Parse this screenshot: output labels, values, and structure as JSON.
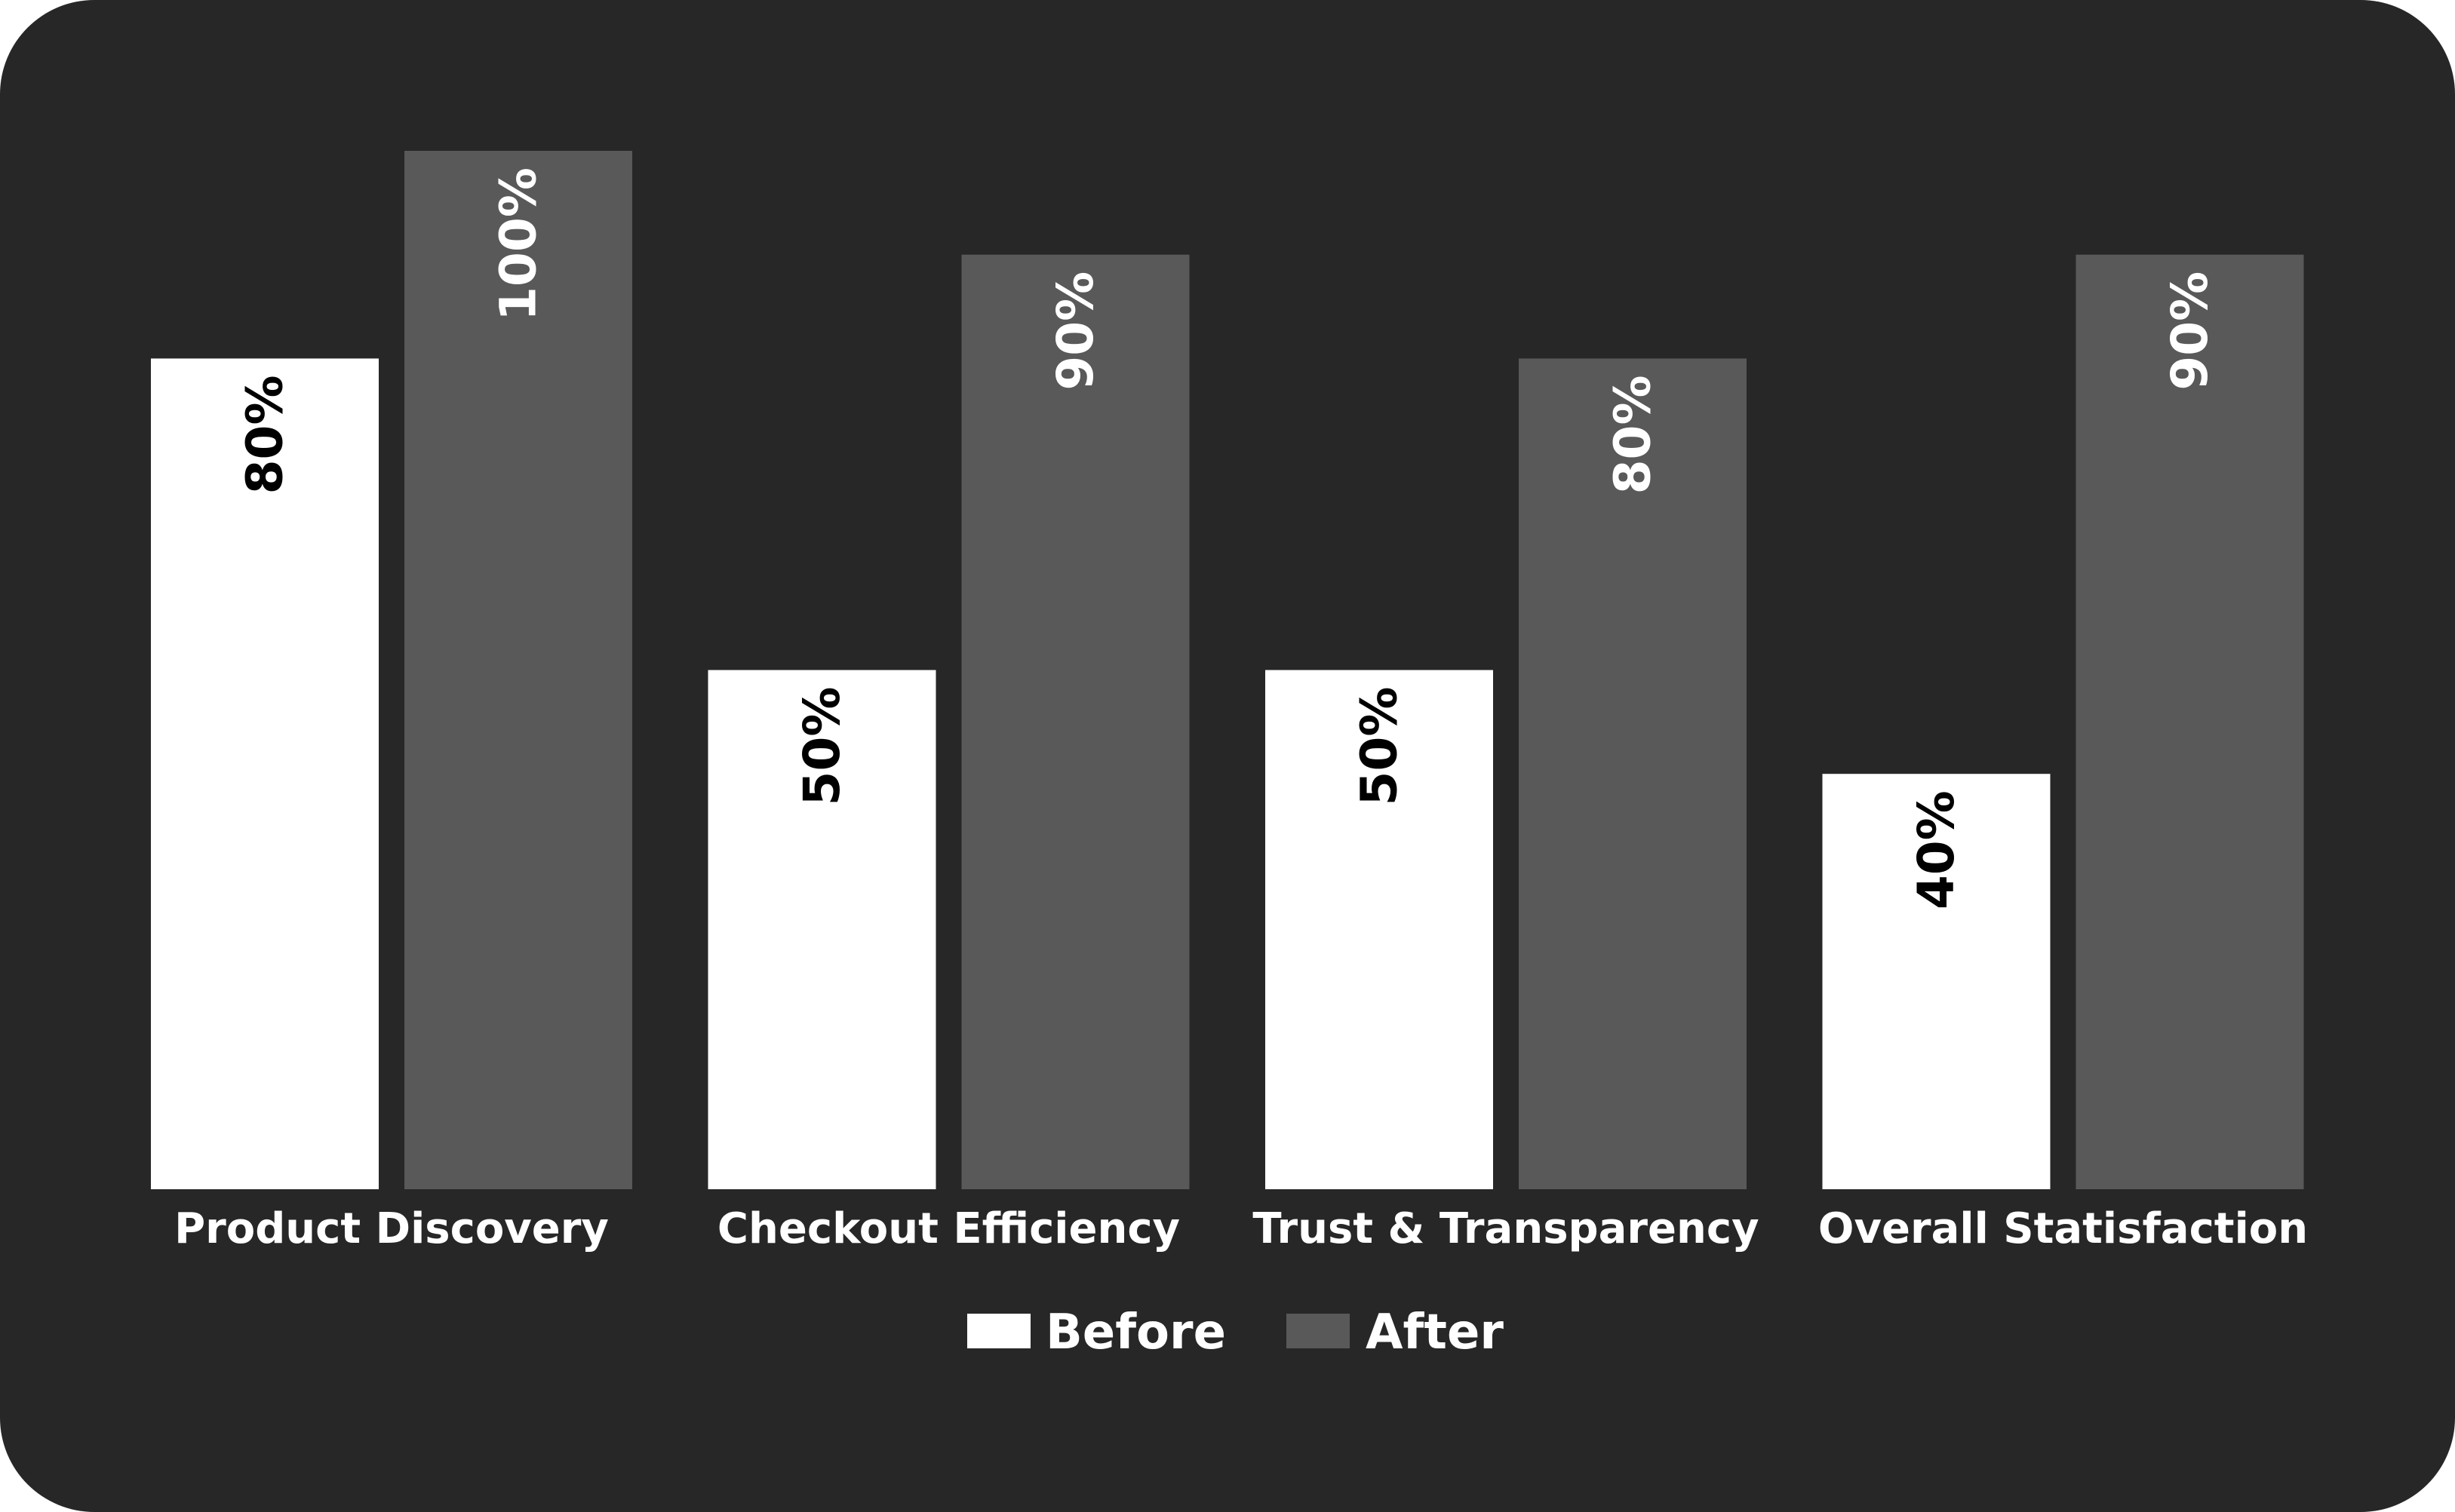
{
  "chart_data": {
    "type": "bar",
    "categories": [
      "Product Discovery",
      "Checkout Efficiency",
      "Trust & Transparency",
      "Overall Statisfaction"
    ],
    "series": [
      {
        "name": "Before",
        "values": [
          80,
          50,
          50,
          40
        ],
        "value_labels": [
          "80%",
          "50%",
          "50%",
          "40%"
        ]
      },
      {
        "name": "After",
        "values": [
          100,
          90,
          80,
          90
        ],
        "value_labels": [
          "100%",
          "90%",
          "80%",
          "90%"
        ]
      }
    ],
    "ylim": [
      0,
      100
    ],
    "grid": false,
    "legend_position": "bottom-center",
    "title": "",
    "xlabel": "",
    "ylabel": ""
  },
  "colors": {
    "background": "#272727",
    "before": "#ffffff",
    "after": "#595959",
    "before_label": "#000000",
    "after_label": "#ffffff"
  }
}
